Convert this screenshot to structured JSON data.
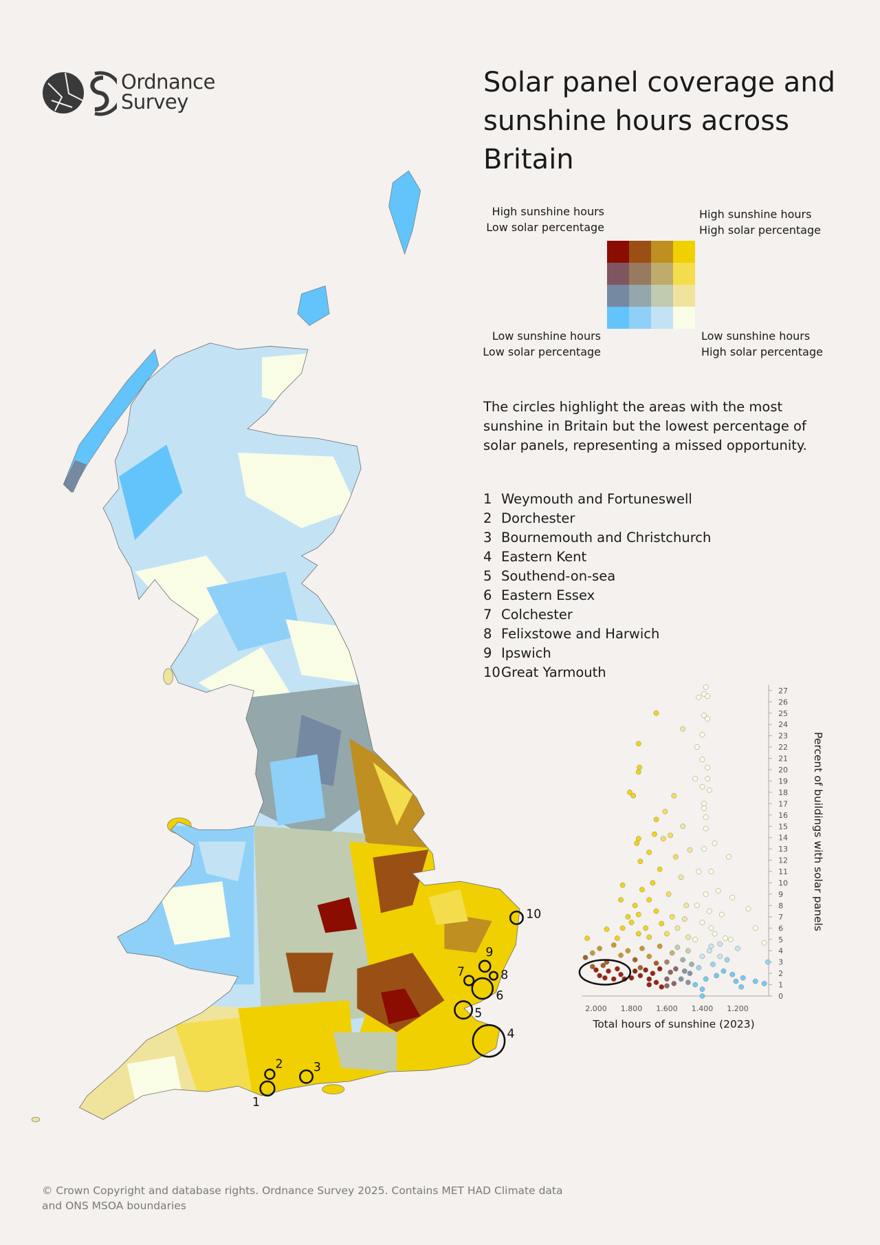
{
  "logo": {
    "line1": "Ordnance",
    "line2": "Survey"
  },
  "title": "Solar panel coverage and sunshine hours across Britain",
  "legend": {
    "top_left": [
      "High sunshine hours",
      "Low solar percentage"
    ],
    "top_right": [
      "High sunshine hours",
      "High solar percentage"
    ],
    "bottom_left": [
      "Low sunshine hours",
      "Low solar percentage"
    ],
    "bottom_right": [
      "Low sunshine hours",
      "High solar percentage"
    ],
    "colors": [
      [
        "#8b0c00",
        "#9a5014",
        "#bf8f22",
        "#f0d000"
      ],
      [
        "#7f5660",
        "#977a60",
        "#bfab6c",
        "#f3dd4c"
      ],
      [
        "#7589a3",
        "#94a8ab",
        "#c0cbb0",
        "#f0e49c"
      ],
      [
        "#62c4fa",
        "#8fd0f8",
        "#c3e3f5",
        "#fafde6"
      ]
    ]
  },
  "description": "The circles highlight the areas with the most sunshine in Britain but the lowest percentage of solar panels, representing a missed opportunity.",
  "places": [
    {
      "num": "1",
      "name": "Weymouth and Fortuneswell"
    },
    {
      "num": "2",
      "name": "Dorchester"
    },
    {
      "num": "3",
      "name": "Bournemouth and Christchurch"
    },
    {
      "num": "4",
      "name": "Eastern Kent"
    },
    {
      "num": "5",
      "name": "Southend-on-sea"
    },
    {
      "num": "6",
      "name": "Eastern Essex"
    },
    {
      "num": "7",
      "name": "Colchester"
    },
    {
      "num": "8",
      "name": "Felixstowe and Harwich"
    },
    {
      "num": "9",
      "name": "Ipswich"
    },
    {
      "num": "10",
      "name": "Great Yarmouth"
    }
  ],
  "footer": "© Crown Copyright and database rights. Ordnance Survey 2025.  Contains MET HAD Climate data and ONS MSOA boundaries",
  "chart_data": {
    "type": "scatter",
    "xlabel": "Total hours of sunshine (2023)",
    "ylabel": "Percent of buildings with solar panels",
    "x_reversed": true,
    "xlim": [
      2080,
      1025
    ],
    "ylim": [
      0,
      27.5
    ],
    "x_ticks": [
      "2,000",
      "1,800",
      "1,600",
      "1,400",
      "1,200"
    ],
    "x_tick_values": [
      2000,
      1800,
      1600,
      1400,
      1200
    ],
    "y_ticks": [
      0,
      1,
      2,
      3,
      4,
      5,
      6,
      7,
      8,
      9,
      10,
      11,
      12,
      13,
      14,
      15,
      16,
      17,
      18,
      19,
      20,
      21,
      22,
      23,
      24,
      25,
      26,
      27
    ],
    "grid": false,
    "highlight_ellipse": {
      "x_center": 1950,
      "y_center": 2.1,
      "note": ""
    },
    "points": [
      [
        1660,
        25
      ],
      [
        1510,
        23.6
      ],
      [
        1760,
        22.3
      ],
      [
        1755,
        20.2
      ],
      [
        1760,
        19.8
      ],
      [
        1810,
        18
      ],
      [
        1790,
        17.7
      ],
      [
        1560,
        17.7
      ],
      [
        1610,
        16.3
      ],
      [
        1660,
        15.6
      ],
      [
        1760,
        13.9
      ],
      [
        1770,
        13.5
      ],
      [
        1700,
        12.7
      ],
      [
        1750,
        11.9
      ],
      [
        1620,
        13.9
      ],
      [
        1670,
        14.3
      ],
      [
        1850,
        9.8
      ],
      [
        1860,
        8.5
      ],
      [
        1940,
        5.9
      ],
      [
        2050,
        5.1
      ],
      [
        1380,
        27.3
      ],
      [
        1390,
        26.7
      ],
      [
        1420,
        26.4
      ],
      [
        1370,
        26.5
      ],
      [
        1390,
        24.8
      ],
      [
        1370,
        24.5
      ],
      [
        1400,
        23.1
      ],
      [
        1430,
        22
      ],
      [
        1400,
        20.9
      ],
      [
        1370,
        20.2
      ],
      [
        1440,
        19.2
      ],
      [
        1370,
        19.2
      ],
      [
        1400,
        18.5
      ],
      [
        1360,
        18.2
      ],
      [
        1390,
        17
      ],
      [
        1390,
        16.6
      ],
      [
        1380,
        15.8
      ],
      [
        1330,
        13.5
      ],
      [
        1250,
        12.3
      ],
      [
        1230,
        8.7
      ],
      [
        1140,
        7.7
      ],
      [
        1100,
        6
      ],
      [
        1050,
        4.7
      ],
      [
        1030,
        3
      ],
      [
        1050,
        1.1
      ],
      [
        1100,
        1.3
      ],
      [
        1170,
        1.6
      ],
      [
        1210,
        1.3
      ],
      [
        1180,
        0.8
      ],
      [
        1400,
        0
      ],
      [
        1780,
        2.2
      ],
      [
        1750,
        1.8
      ],
      [
        1720,
        2.3
      ],
      [
        1700,
        1.5
      ],
      [
        1680,
        2
      ],
      [
        1660,
        1.2
      ],
      [
        1640,
        2.4
      ],
      [
        1630,
        0.8
      ],
      [
        1700,
        1
      ],
      [
        1750,
        2.5
      ],
      [
        1800,
        1.6
      ],
      [
        2000,
        2.3
      ],
      [
        1980,
        1.8
      ],
      [
        1950,
        1.6
      ],
      [
        1930,
        2.2
      ],
      [
        1900,
        1.5
      ],
      [
        1880,
        2.4
      ],
      [
        1860,
        1.9
      ],
      [
        1840,
        1.5
      ],
      [
        2020,
        2.6
      ],
      [
        1960,
        2.7
      ],
      [
        1600,
        1.5
      ],
      [
        1580,
        2.1
      ],
      [
        1560,
        1.1
      ],
      [
        1550,
        2.4
      ],
      [
        1600,
        0.9
      ],
      [
        1520,
        1.5
      ],
      [
        1500,
        2.2
      ],
      [
        1480,
        1.2
      ],
      [
        1470,
        2
      ],
      [
        1440,
        1
      ],
      [
        1420,
        2.5
      ],
      [
        1400,
        3.5
      ],
      [
        1380,
        1.5
      ],
      [
        1360,
        4
      ],
      [
        1340,
        2.8
      ],
      [
        1320,
        1.8
      ],
      [
        1300,
        3.5
      ],
      [
        1280,
        2.2
      ],
      [
        1260,
        3.2
      ],
      [
        1230,
        1.9
      ],
      [
        1200,
        4.2
      ],
      [
        1400,
        0.6
      ],
      [
        1350,
        4.4
      ],
      [
        1300,
        4.6
      ],
      [
        2060,
        3.4
      ],
      [
        2020,
        3.8
      ],
      [
        1980,
        4.2
      ],
      [
        1940,
        3
      ],
      [
        1900,
        4.5
      ],
      [
        1860,
        3.6
      ],
      [
        1820,
        4
      ],
      [
        1780,
        3.2
      ],
      [
        1740,
        4.2
      ],
      [
        1700,
        3.5
      ],
      [
        1660,
        2.9
      ],
      [
        1640,
        4.4
      ],
      [
        1600,
        3
      ],
      [
        1570,
        3.8
      ],
      [
        1540,
        4.3
      ],
      [
        1510,
        3.2
      ],
      [
        1480,
        4
      ],
      [
        1460,
        2.8
      ],
      [
        1880,
        5.1
      ],
      [
        1850,
        6
      ],
      [
        1820,
        7
      ],
      [
        1800,
        6.5
      ],
      [
        1780,
        8
      ],
      [
        1760,
        7.2
      ],
      [
        1740,
        9.4
      ],
      [
        1720,
        6
      ],
      [
        1700,
        8.5
      ],
      [
        1680,
        10
      ],
      [
        1660,
        7.5
      ],
      [
        1640,
        11.2
      ],
      [
        1630,
        6.4
      ],
      [
        1700,
        5.2
      ],
      [
        1760,
        5.5
      ],
      [
        1600,
        5.5
      ],
      [
        1590,
        9
      ],
      [
        1570,
        7
      ],
      [
        1550,
        12.3
      ],
      [
        1540,
        6
      ],
      [
        1520,
        10.5
      ],
      [
        1510,
        15
      ],
      [
        1490,
        8
      ],
      [
        1480,
        5.2
      ],
      [
        1470,
        12.9
      ],
      [
        1580,
        14.2
      ],
      [
        1500,
        6.8
      ],
      [
        1440,
        5
      ],
      [
        1430,
        8
      ],
      [
        1420,
        11
      ],
      [
        1400,
        6.5
      ],
      [
        1390,
        13
      ],
      [
        1380,
        9
      ],
      [
        1360,
        7.5
      ],
      [
        1350,
        11
      ],
      [
        1330,
        5.5
      ],
      [
        1310,
        9.3
      ],
      [
        1290,
        7.2
      ],
      [
        1270,
        5.1
      ],
      [
        1240,
        5
      ],
      [
        1380,
        14.8
      ],
      [
        1350,
        6
      ]
    ]
  }
}
